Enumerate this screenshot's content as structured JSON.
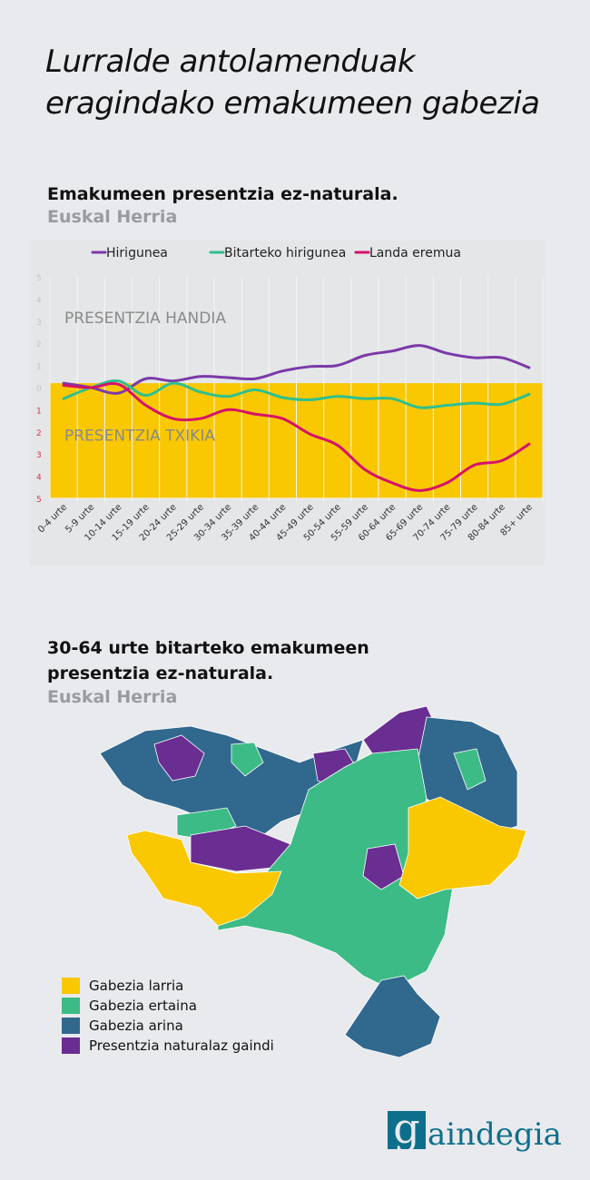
{
  "title_line1": "Lurralde antolamenduak",
  "title_line2": "eragindako emakumeen gabezia",
  "chart_section": {
    "title": "Emakumeen presentzia ez-naturala.",
    "subtitle": "Euskal Herria"
  },
  "chart_data": {
    "type": "line",
    "title": "Emakumeen presentzia ez-naturala.",
    "categories": [
      "0-4 urte",
      "5-9 urte",
      "10-14 urte",
      "15-19 urte",
      "20-24 urte",
      "25-29 urte",
      "30-34 urte",
      "35-39 urte",
      "40-44 urte",
      "45-49 urte",
      "50-54 urte",
      "55-59 urte",
      "60-64 urte",
      "65-69 urte",
      "70-74 urte",
      "75-79 urte",
      "80-84 urte",
      "85+ urte"
    ],
    "yticks": [
      5,
      4,
      3,
      2,
      1,
      0,
      1,
      2,
      3,
      4,
      5
    ],
    "ylim": [
      -5,
      5
    ],
    "legend_position": "top",
    "annotations": [
      "PRESENTZIA HANDIA",
      "PRESENTZIA TXIKIA"
    ],
    "series": [
      {
        "name": "Hirigunea",
        "color": "#7b3aa8",
        "values": [
          0.2,
          0,
          -0.25,
          0.4,
          0.3,
          0.5,
          0.45,
          0.4,
          0.75,
          0.95,
          1.0,
          1.45,
          1.65,
          1.9,
          1.55,
          1.35,
          1.35,
          0.9
        ]
      },
      {
        "name": "Bitarteko hirigunea",
        "color": "#2fbf8f",
        "values": [
          -0.5,
          0,
          0.3,
          -0.35,
          0.2,
          -0.2,
          -0.4,
          -0.1,
          -0.45,
          -0.55,
          -0.4,
          -0.5,
          -0.5,
          -0.9,
          -0.8,
          -0.7,
          -0.75,
          -0.3
        ]
      },
      {
        "name": "Landa eremua",
        "color": "#d6126a",
        "values": [
          0.1,
          0,
          0.15,
          -0.8,
          -1.4,
          -1.4,
          -1.0,
          -1.2,
          -1.4,
          -2.1,
          -2.6,
          -3.7,
          -4.3,
          -4.65,
          -4.3,
          -3.5,
          -3.3,
          -2.55
        ]
      }
    ]
  },
  "map_section": {
    "title_line1": "30-64 urte bitarteko emakumeen",
    "title_line2": "presentzia ez-naturala.",
    "subtitle": "Euskal Herria"
  },
  "legend": [
    {
      "label": "Gabezia larria",
      "color": "#f9c800"
    },
    {
      "label": "Gabezia ertaina",
      "color": "#3dbb86"
    },
    {
      "label": "Gabezia arina",
      "color": "#31688e"
    },
    {
      "label": "Presentzia naturalaz gaindi",
      "color": "#6a2d91"
    }
  ],
  "logo": {
    "letter": "g",
    "text": "aindegia"
  }
}
